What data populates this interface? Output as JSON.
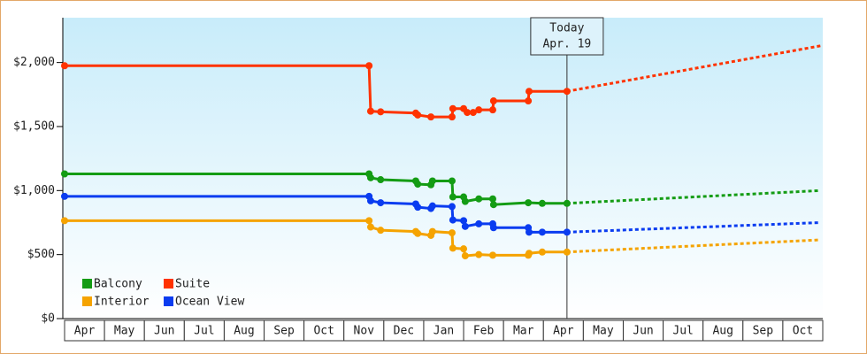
{
  "chart_data": {
    "type": "line",
    "categories": [
      "Apr",
      "May",
      "Jun",
      "Jul",
      "Aug",
      "Sep",
      "Oct",
      "Nov",
      "Dec",
      "Jan",
      "Feb",
      "Mar",
      "Apr",
      "May",
      "Jun",
      "Jul",
      "Aug",
      "Sep",
      "Oct"
    ],
    "xlim": [
      0,
      19
    ],
    "ylim": [
      0,
      2350
    ],
    "yticks": [
      {
        "value": 0,
        "label": "$0"
      },
      {
        "value": 500,
        "label": "$500"
      },
      {
        "value": 1000,
        "label": "$1,000"
      },
      {
        "value": 1500,
        "label": "$1,500"
      },
      {
        "value": 2000,
        "label": "$2,000"
      }
    ],
    "today": {
      "x": 12.59,
      "lines": [
        "Today",
        "Apr. 19"
      ]
    },
    "series": [
      {
        "name": "Balcony",
        "color": "#149c14",
        "x": [
          0,
          7.63,
          7.67,
          7.92,
          8.8,
          8.85,
          9.18,
          9.22,
          9.71,
          9.73,
          10.0,
          10.04,
          10.38,
          10.73,
          10.75,
          11.62,
          11.97,
          12.59
        ],
        "values": [
          1130,
          1130,
          1100,
          1085,
          1075,
          1050,
          1045,
          1075,
          1075,
          950,
          950,
          915,
          935,
          935,
          890,
          905,
          900,
          900
        ],
        "forecast_x": [
          12.59,
          18.94
        ],
        "forecast_values": [
          900,
          1000
        ]
      },
      {
        "name": "Suite",
        "color": "#ff3300",
        "x": [
          0,
          7.63,
          7.67,
          7.92,
          8.8,
          8.85,
          9.18,
          9.71,
          9.73,
          10.0,
          10.09,
          10.24,
          10.38,
          10.73,
          10.75,
          11.62,
          11.64,
          12.59
        ],
        "values": [
          1975,
          1975,
          1620,
          1615,
          1605,
          1590,
          1575,
          1575,
          1640,
          1640,
          1610,
          1610,
          1630,
          1630,
          1700,
          1700,
          1775,
          1775
        ],
        "forecast_x": [
          12.59,
          18.94
        ],
        "forecast_values": [
          1775,
          2130
        ]
      },
      {
        "name": "Interior",
        "color": "#f5a300",
        "x": [
          0,
          7.63,
          7.67,
          7.92,
          8.8,
          8.85,
          9.18,
          9.22,
          9.71,
          9.73,
          10.0,
          10.04,
          10.38,
          10.73,
          11.62,
          11.64,
          11.97,
          12.59
        ],
        "values": [
          765,
          765,
          715,
          690,
          680,
          665,
          650,
          680,
          670,
          550,
          545,
          490,
          500,
          495,
          495,
          510,
          520,
          520
        ],
        "forecast_x": [
          12.59,
          18.94
        ],
        "forecast_values": [
          520,
          615
        ]
      },
      {
        "name": "Ocean View",
        "color": "#0a3cf0",
        "x": [
          0,
          7.63,
          7.67,
          7.92,
          8.8,
          8.85,
          9.18,
          9.22,
          9.71,
          9.73,
          10.0,
          10.04,
          10.38,
          10.73,
          10.75,
          11.62,
          11.64,
          11.97,
          12.59
        ],
        "values": [
          955,
          955,
          920,
          905,
          895,
          870,
          860,
          880,
          875,
          770,
          765,
          720,
          740,
          740,
          710,
          710,
          675,
          675,
          675
        ],
        "forecast_x": [
          12.59,
          18.94
        ],
        "forecast_values": [
          675,
          750
        ]
      }
    ]
  }
}
